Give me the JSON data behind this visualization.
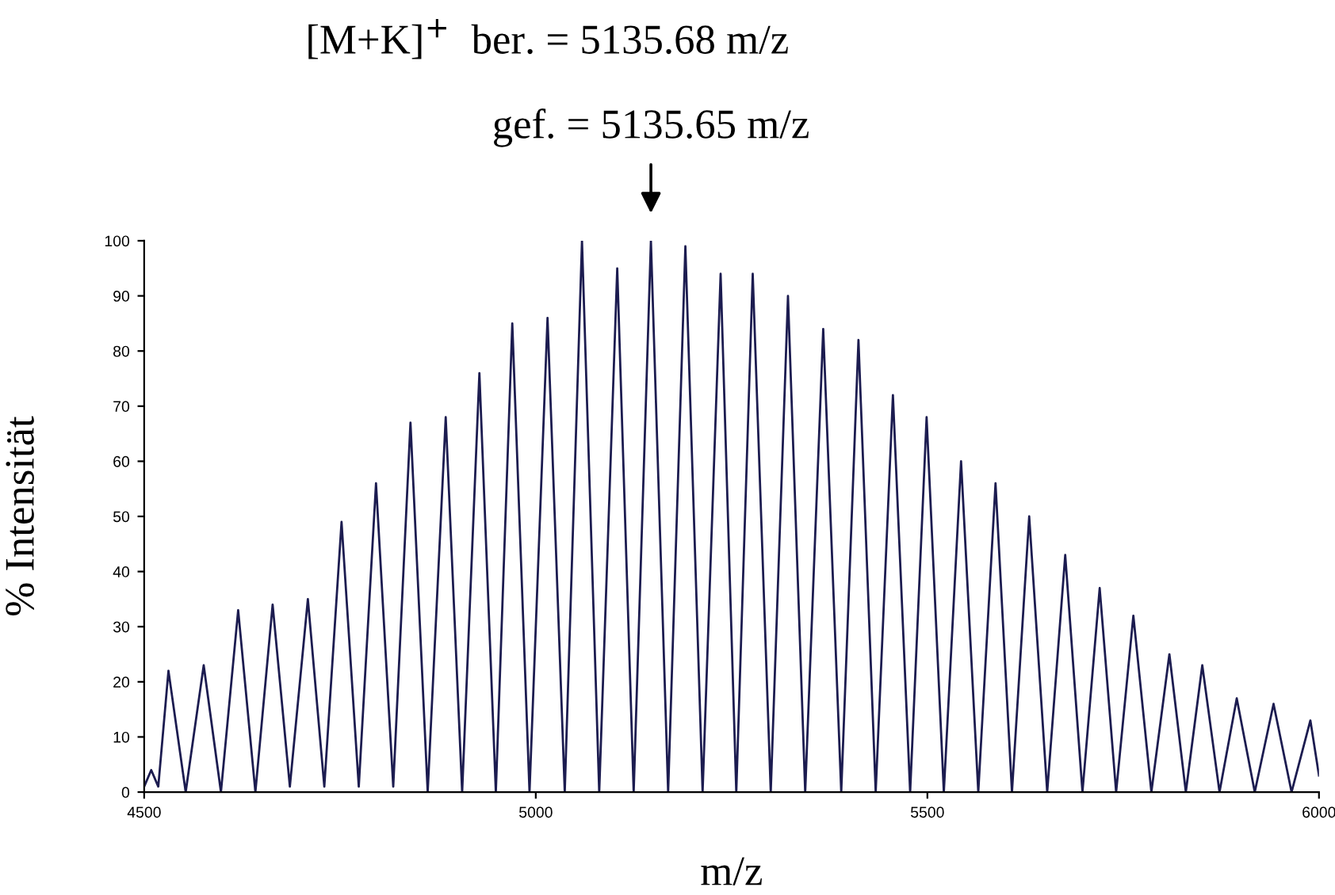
{
  "chart_data": {
    "type": "line",
    "xlabel": "m/z",
    "ylabel": "% Intensität",
    "annotations": [
      "[M+K]$^{+}$  ber. = 5135.68 m/z",
      {
        "text": "gef. = 5135.65 m/z",
        "x": 5147,
        "y": 100
      }
    ],
    "xlim": [
      4500,
      6000
    ],
    "ylim": [
      0,
      100
    ],
    "xticks": [
      4500,
      5000,
      5500,
      6000
    ],
    "yticks": [
      0,
      10,
      20,
      30,
      40,
      50,
      60,
      70,
      80,
      90,
      100
    ],
    "grid": false,
    "marker": "none",
    "line_style": "solid",
    "series": [
      {
        "color": "#1c1c50",
        "x": [
          4500,
          4509,
          4518,
          4531,
          4553,
          4576,
          4598,
          4620,
          4642,
          4664,
          4686,
          4709,
          4730,
          4752,
          4774,
          4796,
          4818,
          4840,
          4862,
          4885,
          4906,
          4928,
          4949,
          4970,
          4992,
          5015,
          5037,
          5059,
          5081,
          5104,
          5125,
          5147,
          5169,
          5191,
          5213,
          5236,
          5256,
          5277,
          5300,
          5322,
          5344,
          5367,
          5390,
          5412,
          5434,
          5456,
          5478,
          5499,
          5521,
          5543,
          5565,
          5587,
          5608,
          5630,
          5653,
          5676,
          5698,
          5720,
          5741,
          5763,
          5786,
          5809,
          5830,
          5851,
          5873,
          5895,
          5918,
          5942,
          5965,
          5989,
          6000
        ],
        "values": [
          1,
          4,
          1,
          22,
          0,
          23,
          0,
          33,
          0,
          34,
          1,
          35,
          1,
          49,
          1,
          56,
          1,
          67,
          0,
          68,
          0,
          76,
          0,
          85,
          0,
          86,
          0,
          100,
          0,
          95,
          0,
          100,
          0,
          99,
          0,
          94,
          0,
          94,
          0,
          90,
          0,
          84,
          0,
          82,
          0,
          72,
          0,
          68,
          0,
          60,
          0,
          56,
          0,
          50,
          0,
          43,
          0,
          37,
          0,
          32,
          0,
          25,
          0,
          23,
          0,
          17,
          0,
          16,
          0,
          13,
          3
        ]
      }
    ]
  }
}
